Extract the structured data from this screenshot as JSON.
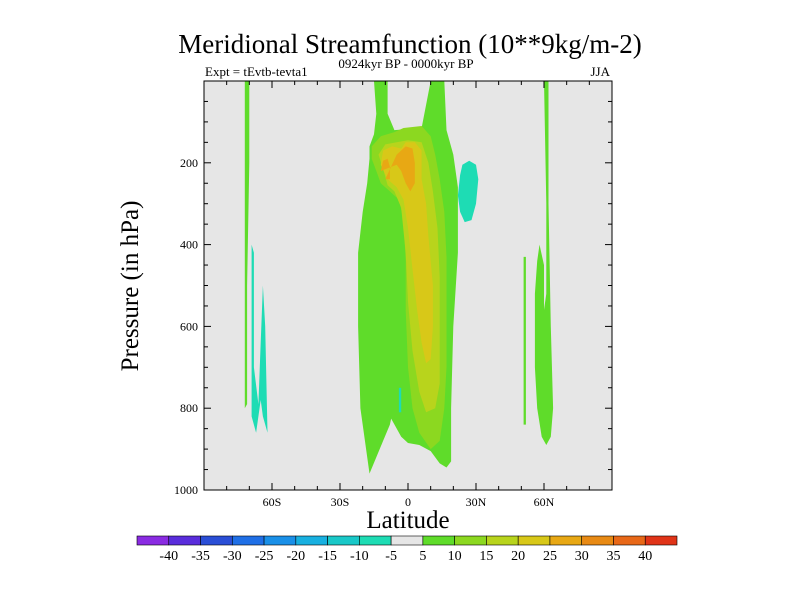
{
  "chart_data": {
    "type": "filled-contour",
    "title": "Meridional Streamfunction (10**9kg/m-2)",
    "left_subtitle": "Expt = tEvtb-tevta1",
    "center_subtitle": "0924kyr BP - 0000kyr BP",
    "right_subtitle": "JJA",
    "xlabel": "Latitude",
    "ylabel": "Pressure (in hPa)",
    "xlim": [
      -90,
      90
    ],
    "ylim": [
      1000,
      0
    ],
    "x_ticks": [
      {
        "value": -60,
        "label": "60S"
      },
      {
        "value": -30,
        "label": "30S"
      },
      {
        "value": 0,
        "label": "0"
      },
      {
        "value": 30,
        "label": "30N"
      },
      {
        "value": 60,
        "label": "60N"
      }
    ],
    "y_ticks": [
      {
        "value": 200,
        "label": "200"
      },
      {
        "value": 400,
        "label": "400"
      },
      {
        "value": 600,
        "label": "600"
      },
      {
        "value": 800,
        "label": "800"
      },
      {
        "value": 1000,
        "label": "1000"
      }
    ],
    "background_color": "#e6e6e6",
    "levels": [
      -40,
      -35,
      -30,
      -25,
      -20,
      -15,
      -10,
      -5,
      5,
      10,
      15,
      20,
      25,
      30,
      35,
      40
    ],
    "colorbar_labels": [
      "-40",
      "-35",
      "-30",
      "-25",
      "-20",
      "-15",
      "-10",
      "-5",
      "5",
      "10",
      "15",
      "20",
      "25",
      "30",
      "35",
      "40"
    ],
    "colors": [
      "#8a2be2",
      "#5a2ddc",
      "#2a4ed6",
      "#1f6fe6",
      "#1a90e8",
      "#18b0e0",
      "#19c8c8",
      "#1edcb4",
      "#e6e6e6",
      "#5fdc2a",
      "#8cd820",
      "#b8d41c",
      "#d8c818",
      "#e8a814",
      "#e88a14",
      "#e86818",
      "#e03418"
    ],
    "regions": [
      {
        "name": "tropical-main-cell-5",
        "value": 5,
        "color": "#5fdc2a",
        "polygon": [
          [
            -17,
            960
          ],
          [
            -21,
            800
          ],
          [
            -22,
            600
          ],
          [
            -22,
            420
          ],
          [
            -20,
            320
          ],
          [
            -18,
            250
          ],
          [
            -17,
            190
          ],
          [
            -17,
            160
          ],
          [
            -15,
            130
          ],
          [
            -14,
            80
          ],
          [
            -15,
            0
          ],
          [
            -9,
            0
          ],
          [
            -9,
            80
          ],
          [
            -6,
            120
          ],
          [
            6,
            115
          ],
          [
            10,
            0
          ],
          [
            16,
            0
          ],
          [
            17,
            120
          ],
          [
            20,
            180
          ],
          [
            22,
            260
          ],
          [
            22,
            420
          ],
          [
            20,
            600
          ],
          [
            19,
            800
          ],
          [
            19,
            930
          ],
          [
            17,
            945
          ],
          [
            14,
            935
          ],
          [
            10,
            905
          ],
          [
            5,
            890
          ],
          [
            0,
            885
          ],
          [
            -3,
            870
          ],
          [
            -8,
            820
          ],
          [
            -12,
            790
          ],
          [
            -14,
            760
          ],
          [
            -15,
            700
          ],
          [
            -16,
            600
          ],
          [
            -16,
            520
          ],
          [
            -15,
            460
          ],
          [
            -12,
            420
          ],
          [
            -6,
            395
          ],
          [
            -4,
            440
          ],
          [
            -4,
            600
          ],
          [
            -5,
            760
          ],
          [
            -8,
            840
          ],
          [
            -11,
            880
          ],
          [
            -14,
            920
          ]
        ]
      },
      {
        "name": "tropical-cell-10",
        "value": 10,
        "color": "#8cd820",
        "polygon": [
          [
            -14,
            220
          ],
          [
            -16,
            190
          ],
          [
            -16,
            160
          ],
          [
            -12,
            135
          ],
          [
            -6,
            125
          ],
          [
            -2,
            115
          ],
          [
            6,
            110
          ],
          [
            10,
            135
          ],
          [
            12,
            180
          ],
          [
            14,
            240
          ],
          [
            16,
            320
          ],
          [
            17,
            430
          ],
          [
            17,
            560
          ],
          [
            17,
            700
          ],
          [
            16,
            800
          ],
          [
            14,
            880
          ],
          [
            10,
            900
          ],
          [
            5,
            860
          ],
          [
            2,
            800
          ],
          [
            0,
            700
          ],
          [
            -1,
            560
          ],
          [
            -1,
            440
          ],
          [
            -2,
            340
          ],
          [
            -4,
            290
          ],
          [
            -8,
            270
          ],
          [
            -12,
            250
          ]
        ]
      },
      {
        "name": "tropical-cell-15",
        "value": 15,
        "color": "#b8d41c",
        "polygon": [
          [
            -11,
            215
          ],
          [
            -13,
            180
          ],
          [
            -10,
            155
          ],
          [
            -5,
            150
          ],
          [
            0,
            145
          ],
          [
            6,
            150
          ],
          [
            9,
            200
          ],
          [
            11,
            270
          ],
          [
            13,
            360
          ],
          [
            14,
            480
          ],
          [
            14,
            620
          ],
          [
            14,
            740
          ],
          [
            12,
            800
          ],
          [
            8,
            810
          ],
          [
            5,
            760
          ],
          [
            2,
            660
          ],
          [
            0,
            540
          ],
          [
            -1,
            420
          ],
          [
            -3,
            310
          ],
          [
            -6,
            270
          ],
          [
            -9,
            255
          ]
        ]
      },
      {
        "name": "tropical-cell-20",
        "value": 20,
        "color": "#d8c818",
        "polygon": [
          [
            -12,
            205
          ],
          [
            -11,
            170
          ],
          [
            -7,
            160
          ],
          [
            -3,
            165
          ],
          [
            -1,
            150
          ],
          [
            3,
            150
          ],
          [
            6,
            170
          ],
          [
            6,
            240
          ],
          [
            8,
            300
          ],
          [
            9,
            380
          ],
          [
            11,
            500
          ],
          [
            11,
            600
          ],
          [
            10,
            680
          ],
          [
            8,
            690
          ],
          [
            6,
            640
          ],
          [
            4,
            560
          ],
          [
            2,
            460
          ],
          [
            0,
            360
          ],
          [
            -2,
            290
          ],
          [
            -5,
            260
          ],
          [
            -9,
            240
          ]
        ]
      },
      {
        "name": "tropical-cell-25",
        "value": 25,
        "color": "#e8a814",
        "polygon": [
          [
            -12,
            220
          ],
          [
            -11,
            195
          ],
          [
            -9,
            190
          ],
          [
            -8,
            210
          ],
          [
            -8,
            240
          ],
          [
            -10,
            240
          ],
          [
            -5,
            180
          ],
          [
            -3,
            170
          ],
          [
            -1,
            160
          ],
          [
            2,
            165
          ],
          [
            3,
            200
          ],
          [
            3,
            250
          ],
          [
            1,
            270
          ],
          [
            -1,
            250
          ],
          [
            -3,
            220
          ],
          [
            -5,
            205
          ]
        ]
      },
      {
        "name": "nh-subtropics-neg-5",
        "value": -5,
        "color": "#1edcb4",
        "polygon": [
          [
            23,
            230
          ],
          [
            24,
            205
          ],
          [
            27,
            195
          ],
          [
            30,
            205
          ],
          [
            31,
            240
          ],
          [
            30,
            300
          ],
          [
            28,
            340
          ],
          [
            25,
            345
          ],
          [
            23,
            320
          ],
          [
            22,
            280
          ]
        ]
      },
      {
        "name": "sh-high-lat-strip-5",
        "value": 5,
        "color": "#5fdc2a",
        "polygon": [
          [
            -72,
            0
          ],
          [
            -70,
            0
          ],
          [
            -70,
            200
          ],
          [
            -71,
            500
          ],
          [
            -71,
            790
          ],
          [
            -72,
            800
          ]
        ]
      },
      {
        "name": "sh-high-lat-neg-5",
        "value": -5,
        "color": "#1edcb4",
        "polygon": [
          [
            -69,
            400
          ],
          [
            -68,
            420
          ],
          [
            -68,
            700
          ],
          [
            -66,
            790
          ],
          [
            -65,
            640
          ],
          [
            -64,
            500
          ],
          [
            -63,
            600
          ],
          [
            -62,
            860
          ],
          [
            -64,
            820
          ],
          [
            -65,
            780
          ],
          [
            -67,
            860
          ],
          [
            -69,
            820
          ]
        ]
      },
      {
        "name": "nh-high-lat-left-5",
        "value": 5,
        "color": "#5fdc2a",
        "polygon": [
          [
            51,
            430
          ],
          [
            52,
            430
          ],
          [
            52,
            840
          ],
          [
            51,
            840
          ]
        ]
      },
      {
        "name": "nh-high-lat-center-5",
        "value": 5,
        "color": "#5fdc2a",
        "polygon": [
          [
            60,
            0
          ],
          [
            62,
            0
          ],
          [
            62,
            300
          ],
          [
            63,
            600
          ],
          [
            64,
            800
          ],
          [
            63,
            870
          ],
          [
            61,
            890
          ],
          [
            59,
            870
          ],
          [
            57,
            800
          ],
          [
            56,
            700
          ],
          [
            56,
            520
          ],
          [
            57,
            440
          ],
          [
            58,
            400
          ],
          [
            60,
            450
          ],
          [
            60,
            560
          ],
          [
            61,
            520
          ],
          [
            61,
            300
          ]
        ]
      },
      {
        "name": "equator-small-neg-5",
        "value": -5,
        "color": "#1edcb4",
        "polygon": [
          [
            -4,
            750
          ],
          [
            -3,
            750
          ],
          [
            -3,
            810
          ],
          [
            -4,
            810
          ]
        ]
      }
    ]
  }
}
